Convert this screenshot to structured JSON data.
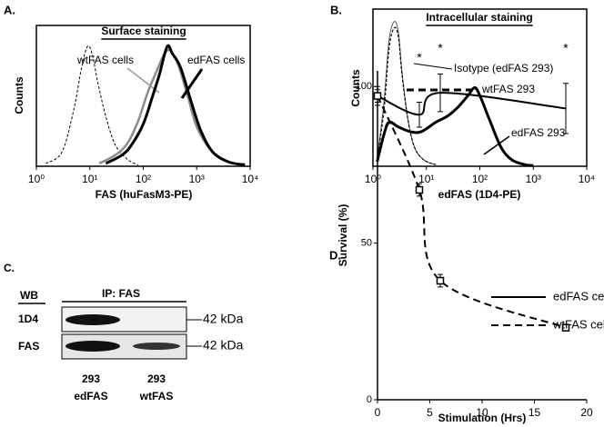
{
  "chart_data": [
    {
      "type": "line",
      "label": "A.",
      "title": "Surface staining",
      "xlabel": "FAS (huFasM3-PE)",
      "ylabel": "Counts",
      "xscale": "log",
      "xlim": [
        1,
        10000
      ],
      "ylim": [
        0,
        100
      ],
      "xticks": [
        {
          "value": 1,
          "label": "10⁰"
        },
        {
          "value": 10,
          "label": "10¹"
        },
        {
          "value": 100,
          "label": "10²"
        },
        {
          "value": 1000,
          "label": "10³"
        },
        {
          "value": 10000,
          "label": "10⁴"
        }
      ],
      "series": [
        {
          "color": "#000000",
          "style": "dashed",
          "x": [
            1.5,
            3,
            5,
            7,
            9,
            11,
            14,
            20,
            30,
            50,
            80
          ],
          "values": [
            2,
            10,
            40,
            70,
            85,
            80,
            60,
            35,
            15,
            5,
            1
          ]
        },
        {
          "name": "wtFAS cells",
          "color": "#8c8c8c",
          "style": "solid",
          "x": [
            15,
            30,
            50,
            80,
            120,
            180,
            250,
            320,
            450,
            700,
            1000,
            1800,
            3500,
            7000
          ],
          "values": [
            2,
            8,
            16,
            32,
            52,
            68,
            80,
            82,
            72,
            48,
            28,
            12,
            4,
            1
          ]
        },
        {
          "name": "edFAS cells",
          "color": "#000000",
          "style": "solid",
          "x": [
            20,
            40,
            60,
            100,
            150,
            200,
            280,
            350,
            500,
            800,
            1200,
            2000,
            4000,
            8000
          ],
          "values": [
            2,
            8,
            15,
            30,
            50,
            65,
            85,
            80,
            70,
            45,
            25,
            10,
            3,
            1
          ]
        }
      ]
    },
    {
      "type": "line",
      "label": "B.",
      "title": "Intracellular staining",
      "xlabel": "edFAS (1D4-PE)",
      "ylabel": "Counts",
      "xscale": "log",
      "xlim": [
        1,
        10000
      ],
      "ylim": [
        0,
        100
      ],
      "xticks": [
        {
          "value": 1,
          "label": "10⁰"
        },
        {
          "value": 10,
          "label": "10¹"
        },
        {
          "value": 100,
          "label": "10²"
        },
        {
          "value": 1000,
          "label": "10³"
        },
        {
          "value": 10000,
          "label": "10⁴"
        }
      ],
      "series": [
        {
          "name": "Isotype (edFAS 293)",
          "color": "#555555",
          "style": "solid",
          "x": [
            1.2,
            1.6,
            2,
            2.5,
            3,
            3.5,
            4.5,
            6,
            9,
            15
          ],
          "values": [
            5,
            40,
            80,
            92,
            85,
            60,
            30,
            12,
            4,
            1
          ]
        },
        {
          "name": "wtFAS 293",
          "color": "#000000",
          "style": "dashed",
          "x": [
            1.2,
            1.6,
            2,
            2.5,
            3,
            3.5,
            4.5,
            6,
            9,
            15
          ],
          "values": [
            5,
            35,
            75,
            88,
            82,
            58,
            30,
            12,
            4,
            1
          ]
        },
        {
          "name": "edFAS 293",
          "color": "#000000",
          "style": "solid",
          "x": [
            1.2,
            1.6,
            2,
            3,
            5,
            8,
            15,
            25,
            40,
            60,
            80,
            100,
            150,
            250,
            400,
            700,
            1000
          ],
          "values": [
            3,
            20,
            28,
            25,
            22,
            22,
            28,
            32,
            38,
            45,
            50,
            45,
            30,
            12,
            4,
            1,
            0.5
          ]
        }
      ]
    },
    {
      "type": "line",
      "label": "D.",
      "xlabel": "Stimulation (Hrs)",
      "ylabel": "Survival (%)",
      "xlim": [
        0,
        20
      ],
      "ylim": [
        0,
        105
      ],
      "xticks": [
        0,
        5,
        10,
        15,
        20
      ],
      "yticks": [
        0,
        50,
        100
      ],
      "legend": "right",
      "annotations": [
        "*",
        "*",
        "*"
      ],
      "series": [
        {
          "name": "edFAS cells",
          "color": "#000000",
          "style": "solid",
          "x": [
            0,
            4,
            6,
            18
          ],
          "values": [
            97,
            91,
            98,
            93
          ],
          "errors": [
            3,
            4,
            6,
            8
          ]
        },
        {
          "name": "wtFAS cells",
          "color": "#000000",
          "style": "dashed",
          "marker": "square",
          "x": [
            0,
            4,
            6,
            18
          ],
          "values": [
            97,
            67,
            38,
            23
          ],
          "errors": [
            2,
            2,
            2,
            1
          ]
        }
      ]
    }
  ],
  "blot": {
    "label": "C.",
    "wb": "WB",
    "ip": "IP: FAS",
    "rows": [
      "1D4",
      "FAS"
    ],
    "marker": [
      "42 kDa",
      "42 kDa"
    ],
    "lanes": [
      [
        "293",
        "edFAS"
      ],
      [
        "293",
        "wtFAS"
      ]
    ]
  }
}
